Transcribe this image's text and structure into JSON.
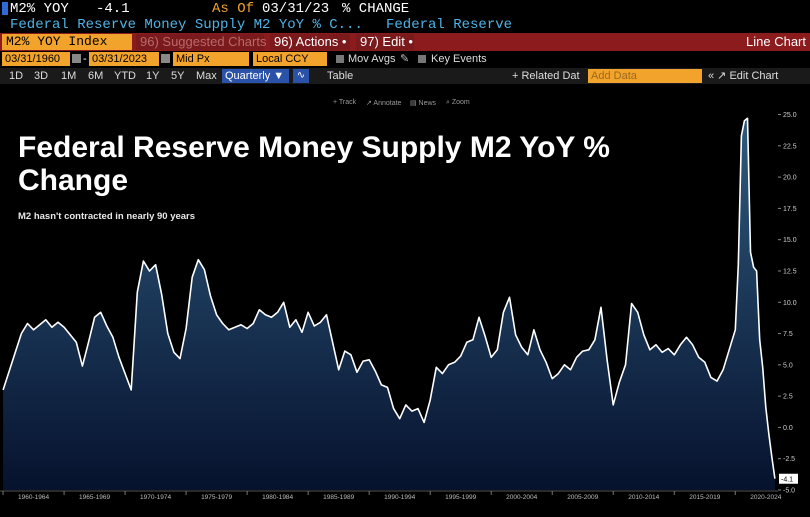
{
  "header": {
    "ticker": "M2% YOY",
    "value": "-4.1",
    "as_of_label": "As Of",
    "as_of_date": "03/31/23",
    "units": "% CHANGE",
    "description": "Federal Reserve Money Supply M2 YoY % C...",
    "source": "Federal Reserve"
  },
  "toolbar": {
    "index_field": "M2% YOY Index",
    "suggested": "96) Suggested Charts",
    "actions": "96) Actions •",
    "edit": "97) Edit •",
    "chart_type": "Line Chart"
  },
  "settings": {
    "start_date": "03/31/1960",
    "end_date": "03/31/2023",
    "price": "Mid Px",
    "currency": "Local CCY",
    "mov_avgs": "Mov Avgs",
    "key_events": "Key Events"
  },
  "periods": {
    "items": [
      "1D",
      "3D",
      "1M",
      "6M",
      "YTD",
      "1Y",
      "5Y",
      "Max"
    ],
    "frequency": "Quarterly ▼",
    "table": "Table",
    "related": "+ Related Dat",
    "add_data": "Add Data",
    "edit_chart": "« ↗ Edit Chart"
  },
  "tools": [
    "+ Track",
    "↗ Annotate",
    "▤ News",
    "⌕ Zoom"
  ],
  "chart_data": {
    "type": "area",
    "title": "Federal Reserve Money Supply M2 YoY % Change",
    "subtitle": "M2 hasn't contracted in nearly 90 years",
    "xlabel": "",
    "ylabel": "",
    "ylim": [
      -5,
      26
    ],
    "xlim": [
      1959.75,
      2023.5
    ],
    "yticks": [
      -5,
      -2.5,
      0,
      2.5,
      5,
      7.5,
      10,
      12.5,
      15,
      17.5,
      20,
      22.5,
      25
    ],
    "ytick_labels": [
      "-5.0",
      "-2.5",
      "0.0",
      "2.5",
      "5.0",
      "7.5",
      "10.0",
      "12.5",
      "15.0",
      "17.5",
      "20.0",
      "22.5",
      "25.0"
    ],
    "x_categories": [
      "1960-1964",
      "1965-1969",
      "1970-1974",
      "1975-1979",
      "1980-1984",
      "1985-1989",
      "1990-1994",
      "1995-1999",
      "2000-2004",
      "2005-2009",
      "2010-2014",
      "2015-2019",
      "2020-2024"
    ],
    "last_value_label": "-4.1",
    "grid": false,
    "line_color": "#ffffff",
    "fill_top_color": "#2f5a7e",
    "fill_bottom_color": "#06122e",
    "x": [
      1960.0,
      1960.5,
      1961.0,
      1961.5,
      1962.0,
      1962.5,
      1963.0,
      1963.5,
      1964.0,
      1964.5,
      1965.0,
      1965.5,
      1966.0,
      1966.5,
      1967.0,
      1967.5,
      1968.0,
      1968.5,
      1969.0,
      1969.5,
      1970.0,
      1970.5,
      1971.0,
      1971.5,
      1972.0,
      1972.5,
      1973.0,
      1973.5,
      1974.0,
      1974.5,
      1975.0,
      1975.5,
      1976.0,
      1976.5,
      1977.0,
      1977.5,
      1978.0,
      1978.5,
      1979.0,
      1979.5,
      1980.0,
      1980.5,
      1981.0,
      1981.5,
      1982.0,
      1982.5,
      1983.0,
      1983.5,
      1984.0,
      1984.5,
      1985.0,
      1985.5,
      1986.0,
      1986.5,
      1987.0,
      1987.5,
      1988.0,
      1988.5,
      1989.0,
      1989.5,
      1990.0,
      1990.5,
      1991.0,
      1991.5,
      1992.0,
      1992.5,
      1993.0,
      1993.5,
      1994.0,
      1994.5,
      1995.0,
      1995.5,
      1996.0,
      1996.5,
      1997.0,
      1997.5,
      1998.0,
      1998.5,
      1999.0,
      1999.5,
      2000.0,
      2000.5,
      2001.0,
      2001.5,
      2002.0,
      2002.5,
      2003.0,
      2003.5,
      2004.0,
      2004.5,
      2005.0,
      2005.5,
      2006.0,
      2006.5,
      2007.0,
      2007.5,
      2008.0,
      2008.5,
      2009.0,
      2009.5,
      2010.0,
      2010.5,
      2011.0,
      2011.5,
      2012.0,
      2012.5,
      2013.0,
      2013.5,
      2014.0,
      2014.5,
      2015.0,
      2015.5,
      2016.0,
      2016.5,
      2017.0,
      2017.5,
      2018.0,
      2018.5,
      2019.0,
      2019.5,
      2020.0,
      2020.25,
      2020.5,
      2020.75,
      2021.0,
      2021.25,
      2021.5,
      2021.75,
      2022.0,
      2022.25,
      2022.5,
      2022.75,
      2023.0,
      2023.25
    ],
    "y": [
      3.0,
      4.5,
      6.0,
      7.5,
      8.3,
      7.8,
      8.2,
      8.6,
      8.0,
      8.4,
      8.0,
      7.4,
      6.8,
      4.9,
      6.8,
      8.8,
      9.2,
      8.1,
      7.2,
      5.6,
      4.3,
      3.0,
      10.8,
      13.3,
      12.5,
      13.0,
      10.6,
      7.5,
      6.0,
      5.5,
      7.9,
      12.0,
      13.4,
      12.6,
      10.5,
      9.0,
      8.3,
      7.8,
      8.0,
      8.2,
      7.9,
      8.3,
      9.4,
      9.0,
      8.8,
      9.2,
      10.0,
      8.0,
      8.6,
      7.6,
      9.2,
      8.1,
      8.4,
      9.0,
      6.8,
      4.6,
      6.1,
      5.8,
      4.4,
      5.3,
      5.4,
      4.5,
      3.4,
      3.2,
      1.5,
      0.7,
      1.8,
      1.3,
      1.5,
      0.4,
      2.2,
      4.8,
      4.3,
      5.0,
      5.2,
      5.7,
      6.8,
      7.0,
      8.8,
      7.3,
      5.6,
      6.2,
      9.2,
      10.4,
      7.4,
      6.4,
      5.8,
      7.8,
      6.2,
      5.2,
      3.9,
      4.3,
      5.0,
      4.6,
      5.6,
      6.1,
      6.2,
      7.0,
      9.6,
      5.4,
      1.8,
      3.6,
      5.0,
      9.9,
      9.2,
      7.4,
      6.2,
      6.6,
      6.0,
      6.3,
      5.8,
      6.6,
      7.2,
      6.6,
      5.6,
      5.2,
      4.0,
      3.7,
      4.6,
      6.2,
      7.8,
      13.0,
      23.3,
      24.5,
      24.7,
      14.0,
      12.8,
      12.5,
      7.0,
      4.8,
      1.6,
      -0.5,
      -2.4,
      -4.1
    ]
  }
}
